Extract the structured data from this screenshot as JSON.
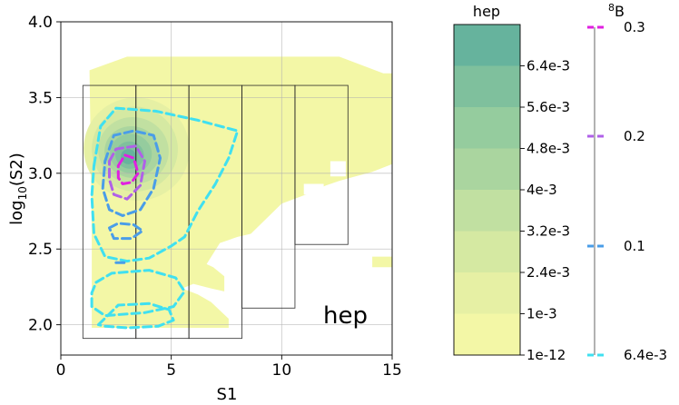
{
  "chart_data": {
    "type": "contour",
    "title": "",
    "xlabel": "S1",
    "ylabel_main": "log",
    "ylabel_sub": "10",
    "ylabel_tail": "(S2)",
    "xlim": [
      0,
      15
    ],
    "ylim": [
      1.8,
      4.0
    ],
    "xticks": [
      0,
      5,
      10,
      15
    ],
    "yticks": [
      2.0,
      2.5,
      3.0,
      3.5,
      4.0
    ],
    "ytick_labels": [
      "2.0",
      "2.5",
      "3.0",
      "3.5",
      "4.0"
    ],
    "grid": true,
    "annotation": "hep",
    "filled_series": {
      "name": "hep",
      "levels": [
        "1e-12",
        "1e-3",
        "2.4e-3",
        "3.2e-3",
        "4e-3",
        "4.8e-3",
        "5.6e-3",
        "6.4e-3"
      ],
      "colors": [
        "#f3f7a6",
        "#e6f0a4",
        "#d5e9a2",
        "#c1e0a1",
        "#aad59f",
        "#95cc9e",
        "#7fc09d",
        "#66b39d"
      ],
      "peak": {
        "x": 3.0,
        "y": 3.1
      }
    },
    "line_series": {
      "name": "8B",
      "name_sup": "8",
      "name_base": "B",
      "levels": [
        "6.4e-3",
        "0.1",
        "0.2",
        "0.3"
      ],
      "colors": [
        "#40e0f0",
        "#4a9de8",
        "#b060e8",
        "#e020e0"
      ]
    },
    "bins": {
      "s1_edges": [
        1.0,
        3.4,
        5.8,
        8.2,
        10.6,
        13.0
      ],
      "log_s2_top": 3.58,
      "log_s2_bottom": [
        1.91,
        1.91,
        1.91,
        2.11,
        2.53
      ]
    }
  }
}
